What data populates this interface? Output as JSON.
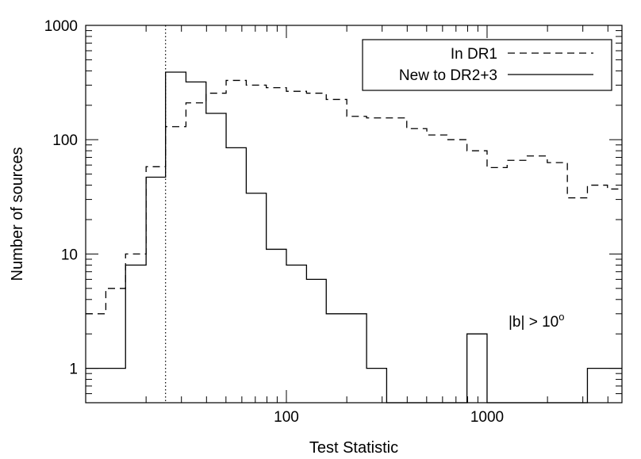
{
  "chart_data": {
    "type": "histogram",
    "xlabel": "Test Statistic",
    "ylabel": "Number of sources",
    "xscale": "log",
    "yscale": "log",
    "xlim": [
      10,
      4700
    ],
    "ylim": [
      0.5,
      1000
    ],
    "xticks": [
      {
        "value": 100,
        "label": "100"
      },
      {
        "value": 1000,
        "label": "1000"
      }
    ],
    "yticks": [
      {
        "value": 1,
        "label": "1"
      },
      {
        "value": 10,
        "label": "10"
      },
      {
        "value": 100,
        "label": "100"
      },
      {
        "value": 1000,
        "label": "1000"
      }
    ],
    "bin_edges": [
      10,
      12.6,
      15.8,
      20,
      25,
      31.6,
      39.8,
      50.1,
      63.1,
      79.4,
      100,
      126,
      158,
      200,
      251,
      316,
      398,
      501,
      631,
      794,
      1000,
      1259,
      1585,
      1995,
      2512,
      3162,
      3981,
      4700
    ],
    "series": [
      {
        "name": "In DR1",
        "style": "dashed",
        "values": [
          3,
          5,
          10,
          58,
          130,
          210,
          255,
          330,
          300,
          285,
          265,
          255,
          225,
          160,
          155,
          155,
          125,
          110,
          100,
          80,
          57,
          66,
          72,
          63,
          31,
          40,
          37
        ]
      },
      {
        "name": "New to DR2+3",
        "style": "solid",
        "values": [
          1,
          1,
          8,
          47,
          390,
          320,
          170,
          85,
          34,
          11,
          8,
          6,
          3,
          3,
          1,
          0.5,
          0.5,
          0.5,
          0.5,
          2,
          0.5,
          0.5,
          0.5,
          0.5,
          0.5,
          1,
          1
        ]
      }
    ],
    "reference_line": {
      "x": 25,
      "style": "dotted"
    },
    "annotation": {
      "text": "|b| > 10",
      "superscript": "o"
    },
    "legend": {
      "position": "top-right"
    }
  }
}
